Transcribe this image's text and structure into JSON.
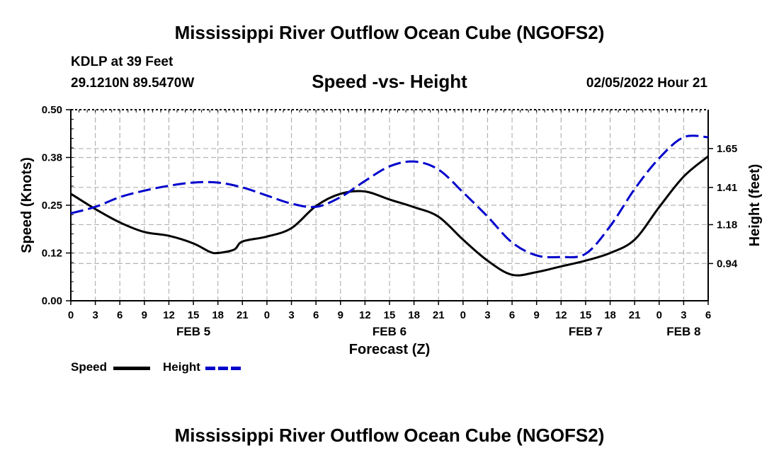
{
  "page": {
    "title_top": "Mississippi River Outflow Ocean Cube (NGOFS2)",
    "title_bottom": "Mississippi River Outflow Ocean Cube (NGOFS2)",
    "station": "KDLP at 39 Feet",
    "coords": "29.1210N  89.5470W",
    "datetime": "02/05/2022 Hour 21"
  },
  "chart_data": {
    "type": "line",
    "title": "Speed -vs- Height",
    "xlabel": "Forecast (Z)",
    "ylabel": "Speed (Knots)",
    "y2label": "Height (feet)",
    "x_unit": "hours from 00Z Feb 5",
    "xlim": [
      -3,
      75
    ],
    "ylim": [
      0,
      0.5
    ],
    "y2lim": [
      0.71,
      1.89
    ],
    "grid": true,
    "x_tick_values": [
      -3,
      0,
      3,
      6,
      9,
      12,
      15,
      18,
      21,
      24,
      27,
      30,
      33,
      36,
      39,
      42,
      45,
      48,
      51,
      54,
      57,
      60,
      63,
      66,
      69,
      72,
      75
    ],
    "x_tick_labels": [
      "0",
      "3",
      "6",
      "9",
      "12",
      "15",
      "18",
      "21",
      "0",
      "3",
      "6",
      "9",
      "12",
      "15",
      "18",
      "21",
      "0",
      "3",
      "6",
      "9",
      "12",
      "15",
      "18",
      "21",
      "0",
      "3",
      "6"
    ],
    "date_labels": [
      {
        "x": 12,
        "label": "FEB 5"
      },
      {
        "x": 36,
        "label": "FEB 6"
      },
      {
        "x": 60,
        "label": "FEB 7"
      },
      {
        "x": 72,
        "label": "FEB 8"
      }
    ],
    "y_ticks": [
      {
        "value": 0.0,
        "label": "0.00"
      },
      {
        "value": 0.125,
        "label": "0.12"
      },
      {
        "value": 0.25,
        "label": "0.25"
      },
      {
        "value": 0.375,
        "label": "0.38"
      },
      {
        "value": 0.5,
        "label": "0.50"
      }
    ],
    "y2_ticks": [
      {
        "value": 0.94,
        "label": "0.94"
      },
      {
        "value": 1.18,
        "label": "1.18"
      },
      {
        "value": 1.41,
        "label": "1.41"
      },
      {
        "value": 1.65,
        "label": "1.65"
      }
    ],
    "series": [
      {
        "name": "Speed",
        "color": "#000000",
        "style": "solid",
        "axis": "left",
        "x": [
          -3,
          0,
          3,
          6,
          9,
          12,
          14,
          15,
          17,
          18,
          21,
          24,
          27,
          30,
          33,
          36,
          39,
          42,
          45,
          48,
          51,
          54,
          57,
          60,
          63,
          66,
          69,
          72,
          75
        ],
        "values": [
          0.28,
          0.24,
          0.205,
          0.18,
          0.17,
          0.15,
          0.128,
          0.125,
          0.134,
          0.155,
          0.168,
          0.19,
          0.248,
          0.28,
          0.286,
          0.265,
          0.245,
          0.22,
          0.16,
          0.105,
          0.068,
          0.075,
          0.09,
          0.105,
          0.125,
          0.16,
          0.245,
          0.325,
          0.378
        ]
      },
      {
        "name": "Height",
        "color": "#0000cc",
        "style": "dashed",
        "axis": "right",
        "x": [
          -3,
          0,
          3,
          6,
          9,
          12,
          15,
          18,
          21,
          24,
          27,
          30,
          33,
          36,
          39,
          42,
          45,
          48,
          51,
          54,
          57,
          60,
          63,
          66,
          69,
          72,
          75
        ],
        "values": [
          1.25,
          1.29,
          1.35,
          1.39,
          1.42,
          1.44,
          1.44,
          1.41,
          1.36,
          1.31,
          1.29,
          1.35,
          1.45,
          1.54,
          1.57,
          1.52,
          1.38,
          1.23,
          1.07,
          0.99,
          0.98,
          1.0,
          1.17,
          1.4,
          1.59,
          1.72,
          1.72
        ]
      }
    ],
    "legend": [
      {
        "label": "Speed",
        "color": "#000000",
        "style": "solid"
      },
      {
        "label": "Height",
        "color": "#0000cc",
        "style": "dashed"
      }
    ]
  }
}
